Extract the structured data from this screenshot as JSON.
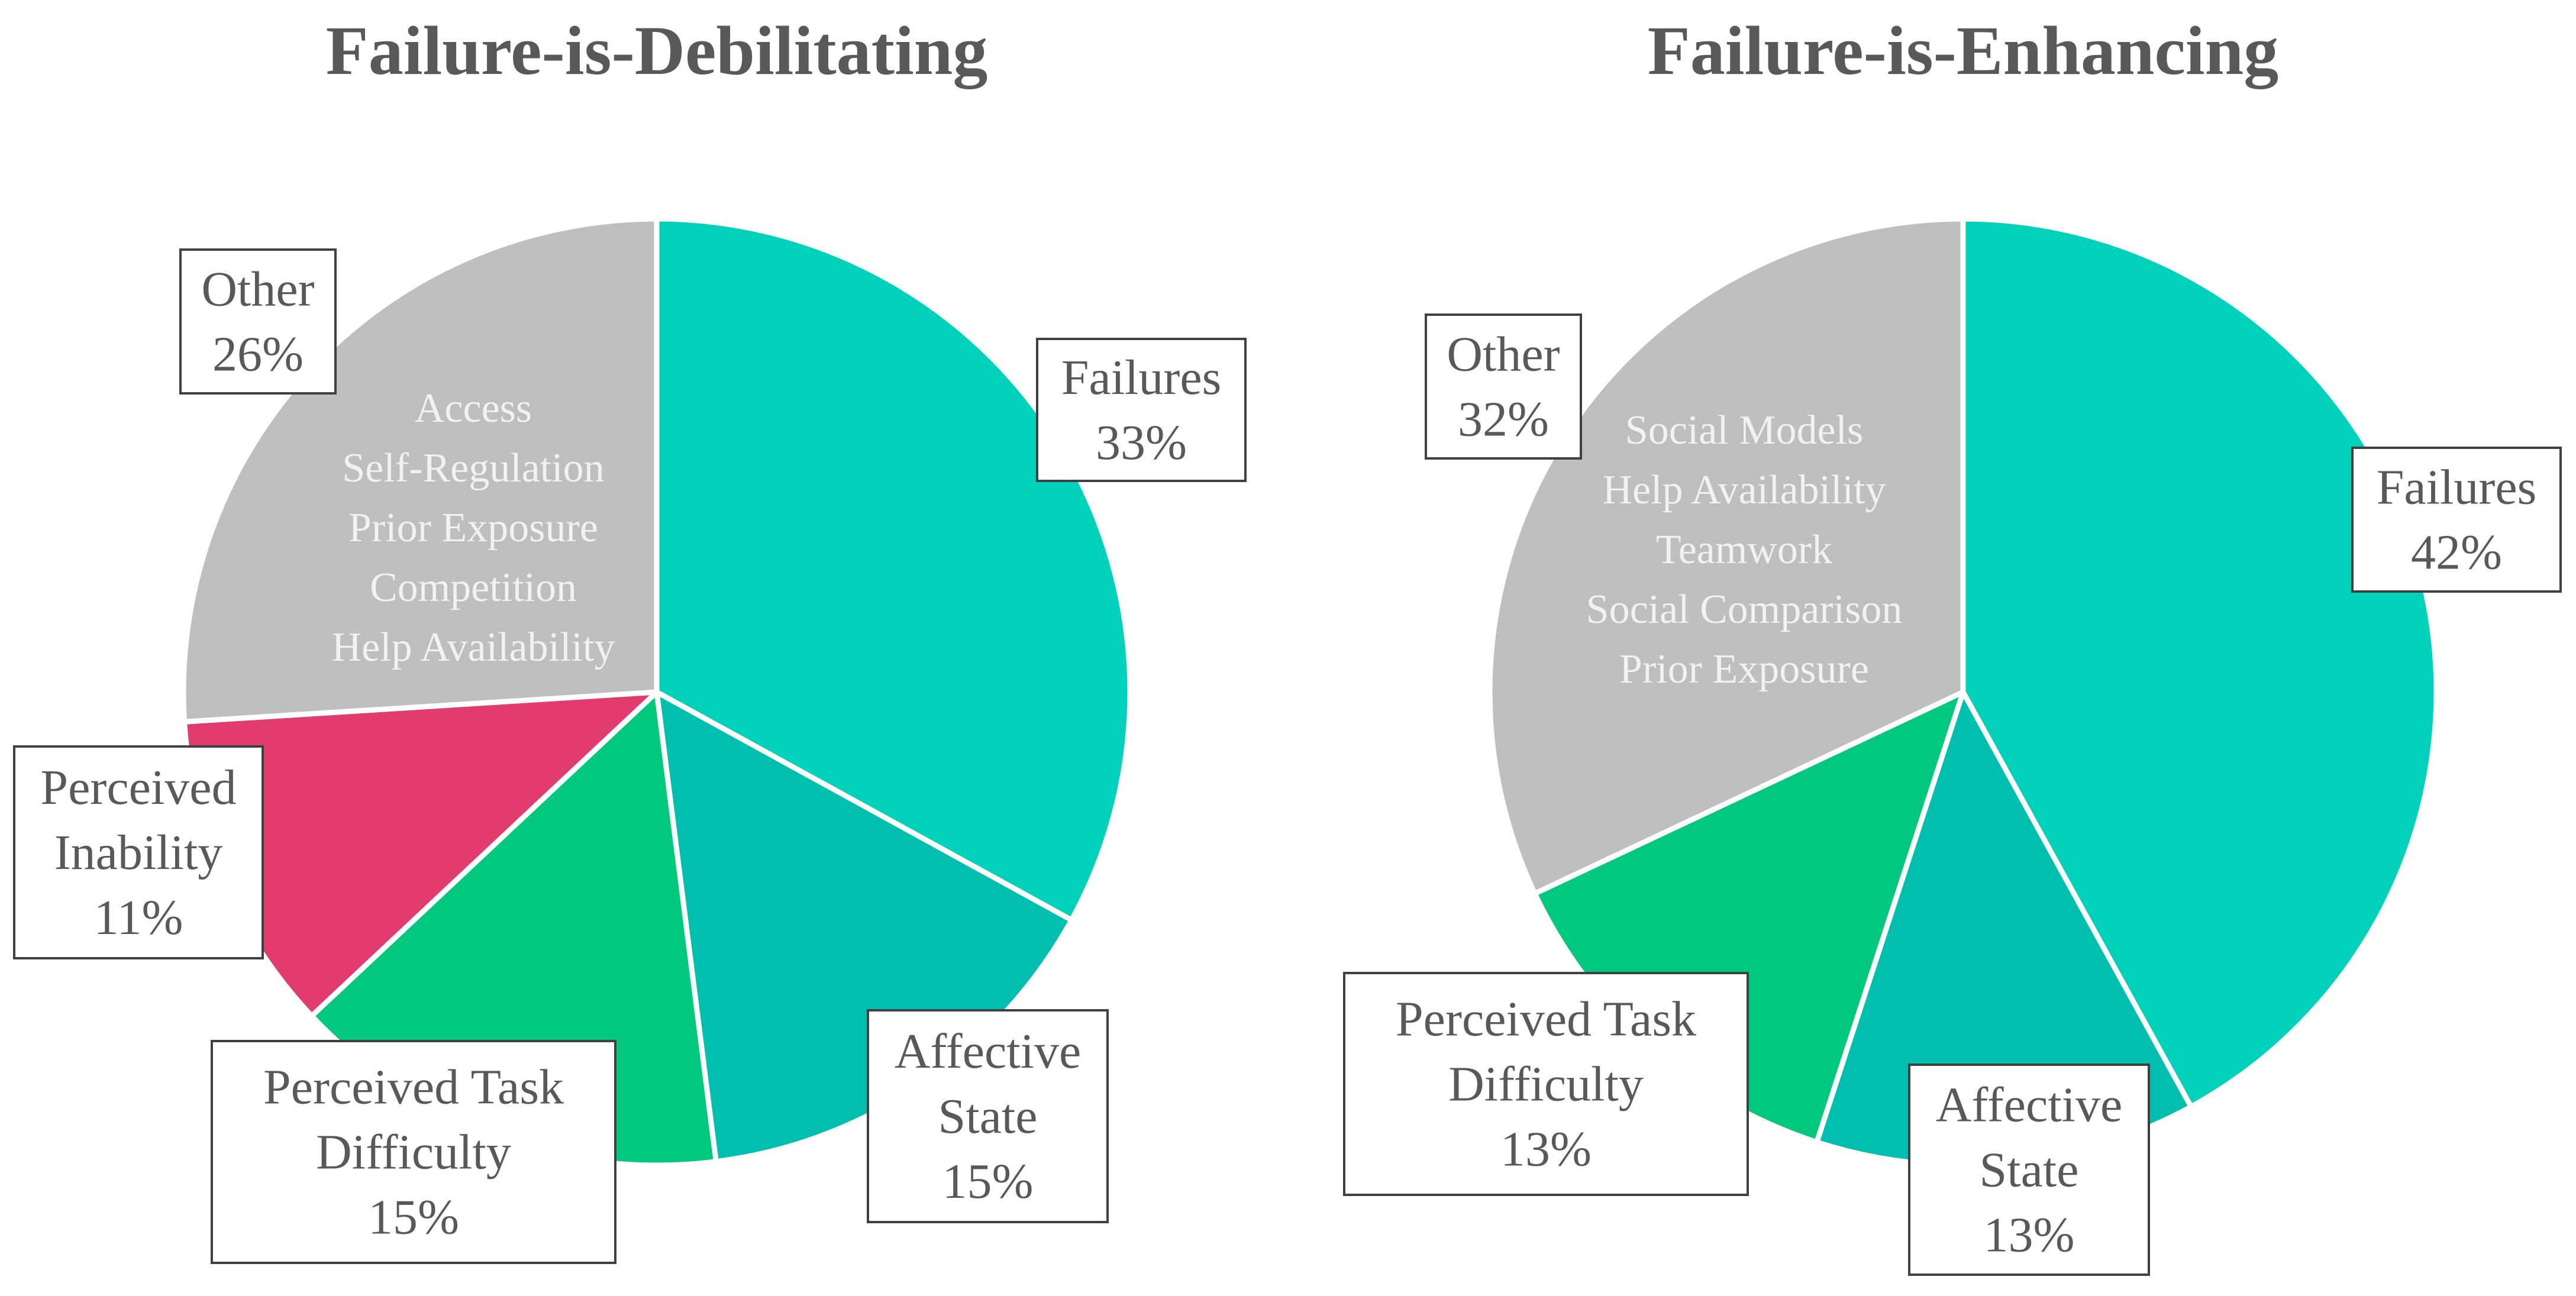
{
  "chart_data": [
    {
      "type": "pie",
      "title": "Failure-is-Debilitating",
      "slices": [
        {
          "label": [
            "Failures"
          ],
          "value": 33,
          "value_label": "33%",
          "color": "#00d1bb"
        },
        {
          "label": [
            "Affective",
            "State"
          ],
          "value": 15,
          "value_label": "15%",
          "color": "#00bfae"
        },
        {
          "label": [
            "Perceived Task",
            "Difficulty"
          ],
          "value": 15,
          "value_label": "15%",
          "color": "#00c97e"
        },
        {
          "label": [
            "Perceived",
            "Inability"
          ],
          "value": 11,
          "value_label": "11%",
          "color": "#e23b6e"
        },
        {
          "label": [
            "Other"
          ],
          "value": 26,
          "value_label": "26%",
          "color": "#bfbfbf",
          "detail": [
            "Access",
            "Self-Regulation",
            "Prior Exposure",
            "Competition",
            "Help Availability"
          ]
        }
      ]
    },
    {
      "type": "pie",
      "title": "Failure-is-Enhancing",
      "slices": [
        {
          "label": [
            "Failures"
          ],
          "value": 42,
          "value_label": "42%",
          "color": "#00d1bb"
        },
        {
          "label": [
            "Affective",
            "State"
          ],
          "value": 13,
          "value_label": "13%",
          "color": "#00bfae"
        },
        {
          "label": [
            "Perceived Task",
            "Difficulty"
          ],
          "value": 13,
          "value_label": "13%",
          "color": "#00c97e"
        },
        {
          "label": [
            "Other"
          ],
          "value": 32,
          "value_label": "32%",
          "color": "#bfbfbf",
          "detail": [
            "Social Models",
            "Help Availability",
            "Teamwork",
            "Social Comparison",
            "Prior Exposure"
          ]
        }
      ]
    }
  ]
}
